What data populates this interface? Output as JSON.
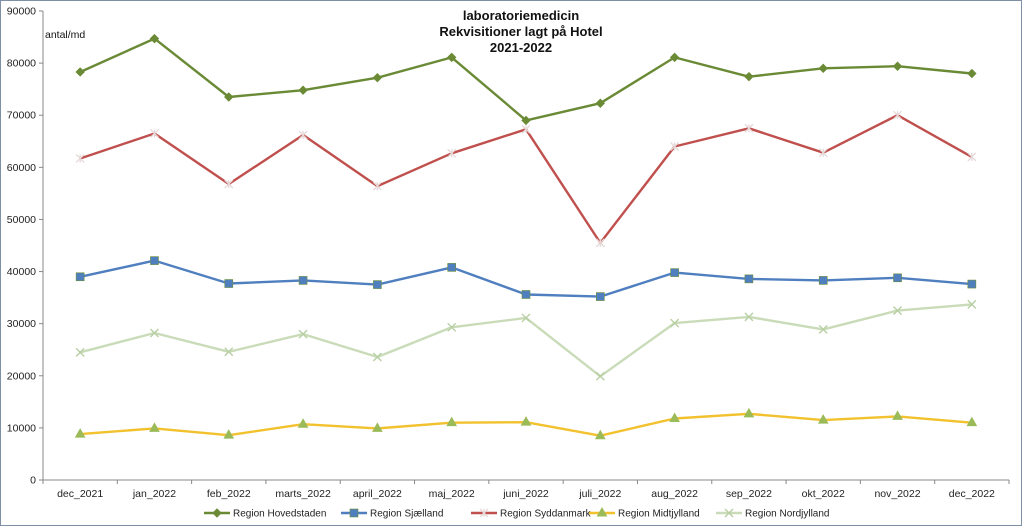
{
  "chart_data": {
    "type": "line",
    "title_lines": [
      "laboratoriemedicin",
      "Rekvisitioner  lagt på Hotel",
      "2021-2022"
    ],
    "ylabel": "antal/md",
    "ylim": [
      0,
      90000
    ],
    "yticks": [
      0,
      10000,
      20000,
      30000,
      40000,
      50000,
      60000,
      70000,
      80000,
      90000
    ],
    "grid": false,
    "legend_position": "bottom",
    "categories": [
      "dec_2021",
      "jan_2022",
      "feb_2022",
      "marts_2022",
      "april_2022",
      "maj_2022",
      "juni_2022",
      "juli_2022",
      "aug_2022",
      "sep_2022",
      "okt_2022",
      "nov_2022",
      "dec_2022"
    ],
    "series": [
      {
        "name": "Region Hovedstaden",
        "color": "#6a8a35",
        "marker": "diamond",
        "values": [
          78300,
          84700,
          73500,
          74800,
          77200,
          81100,
          69000,
          72300,
          81100,
          77400,
          79000,
          79400,
          78000
        ]
      },
      {
        "name": "Region Sjælland",
        "color": "#4f7fbf",
        "marker": "square",
        "values": [
          39000,
          42100,
          37700,
          38300,
          37500,
          40800,
          35600,
          35200,
          39800,
          38600,
          38300,
          38800,
          37600
        ]
      },
      {
        "name": "Region Syddanmark",
        "color": "#c0504d",
        "marker": "star",
        "values": [
          61700,
          66500,
          56800,
          66200,
          56400,
          62700,
          67300,
          45500,
          64000,
          67500,
          62800,
          70000,
          62000
        ]
      },
      {
        "name": "Region Midtjylland",
        "color": "#f2c12e",
        "marker": "triangle",
        "values": [
          8800,
          9900,
          8600,
          10700,
          9900,
          11000,
          11100,
          8500,
          11800,
          12700,
          11500,
          12200,
          11000
        ]
      },
      {
        "name": "Region Nordjylland",
        "color": "#c9dbb8",
        "marker": "x",
        "values": [
          24500,
          28200,
          24600,
          28000,
          23600,
          29300,
          31100,
          19900,
          30100,
          31300,
          28900,
          32500,
          33700
        ]
      }
    ]
  }
}
